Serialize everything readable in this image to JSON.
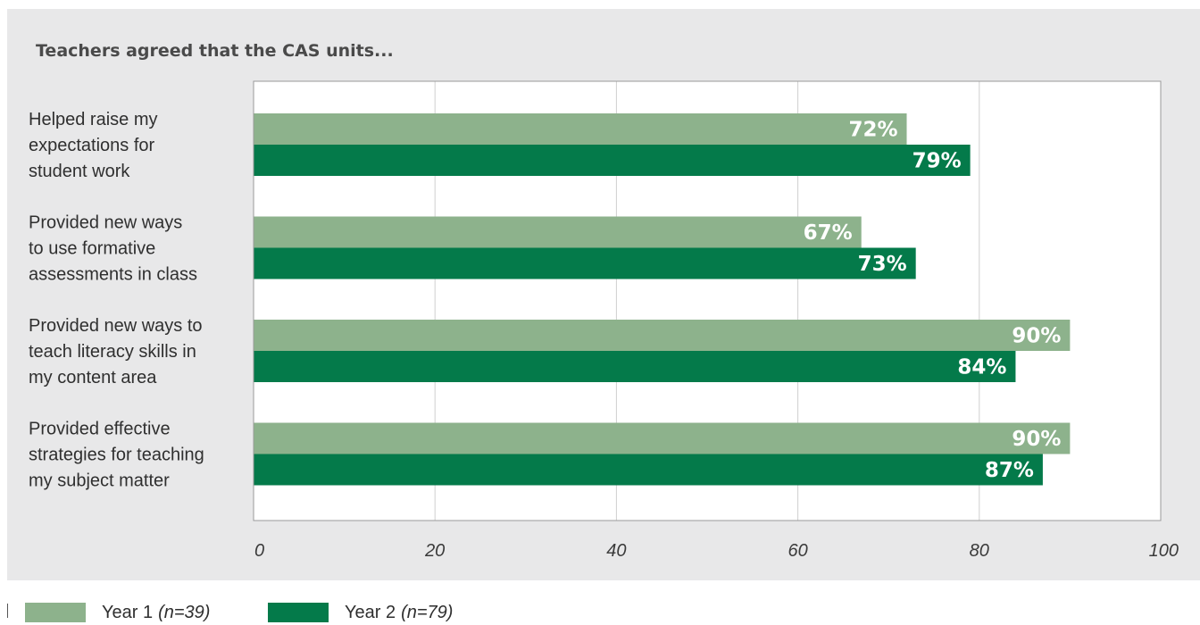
{
  "chart_data": {
    "type": "bar",
    "orientation": "horizontal",
    "title": "Teachers agreed that the CAS units...",
    "categories": [
      [
        "Helped raise my",
        "expectations for",
        "student work"
      ],
      [
        "Provided new ways",
        "to use formative",
        "assessments in class"
      ],
      [
        "Provided new ways to",
        "teach literacy skills in",
        "my content area"
      ],
      [
        "Provided effective",
        "strategies for teaching",
        "my subject matter"
      ]
    ],
    "series": [
      {
        "name": "Year 1",
        "note": "(n=39)",
        "color": "#8db28c",
        "values": [
          72,
          67,
          90,
          90
        ],
        "labels": [
          "72%",
          "67%",
          "90%",
          "90%"
        ]
      },
      {
        "name": "Year 2",
        "note": "(n=79)",
        "color": "#047a4a",
        "values": [
          79,
          73,
          84,
          87
        ],
        "labels": [
          "79%",
          "73%",
          "84%",
          "87%"
        ]
      }
    ],
    "xlim": [
      0,
      100
    ],
    "xticks": [
      0,
      20,
      40,
      60,
      80,
      100
    ],
    "xtick_labels": [
      "0",
      "20",
      "40",
      "60",
      "80",
      "100"
    ],
    "grid": true,
    "legend_position": "bottom-left"
  }
}
